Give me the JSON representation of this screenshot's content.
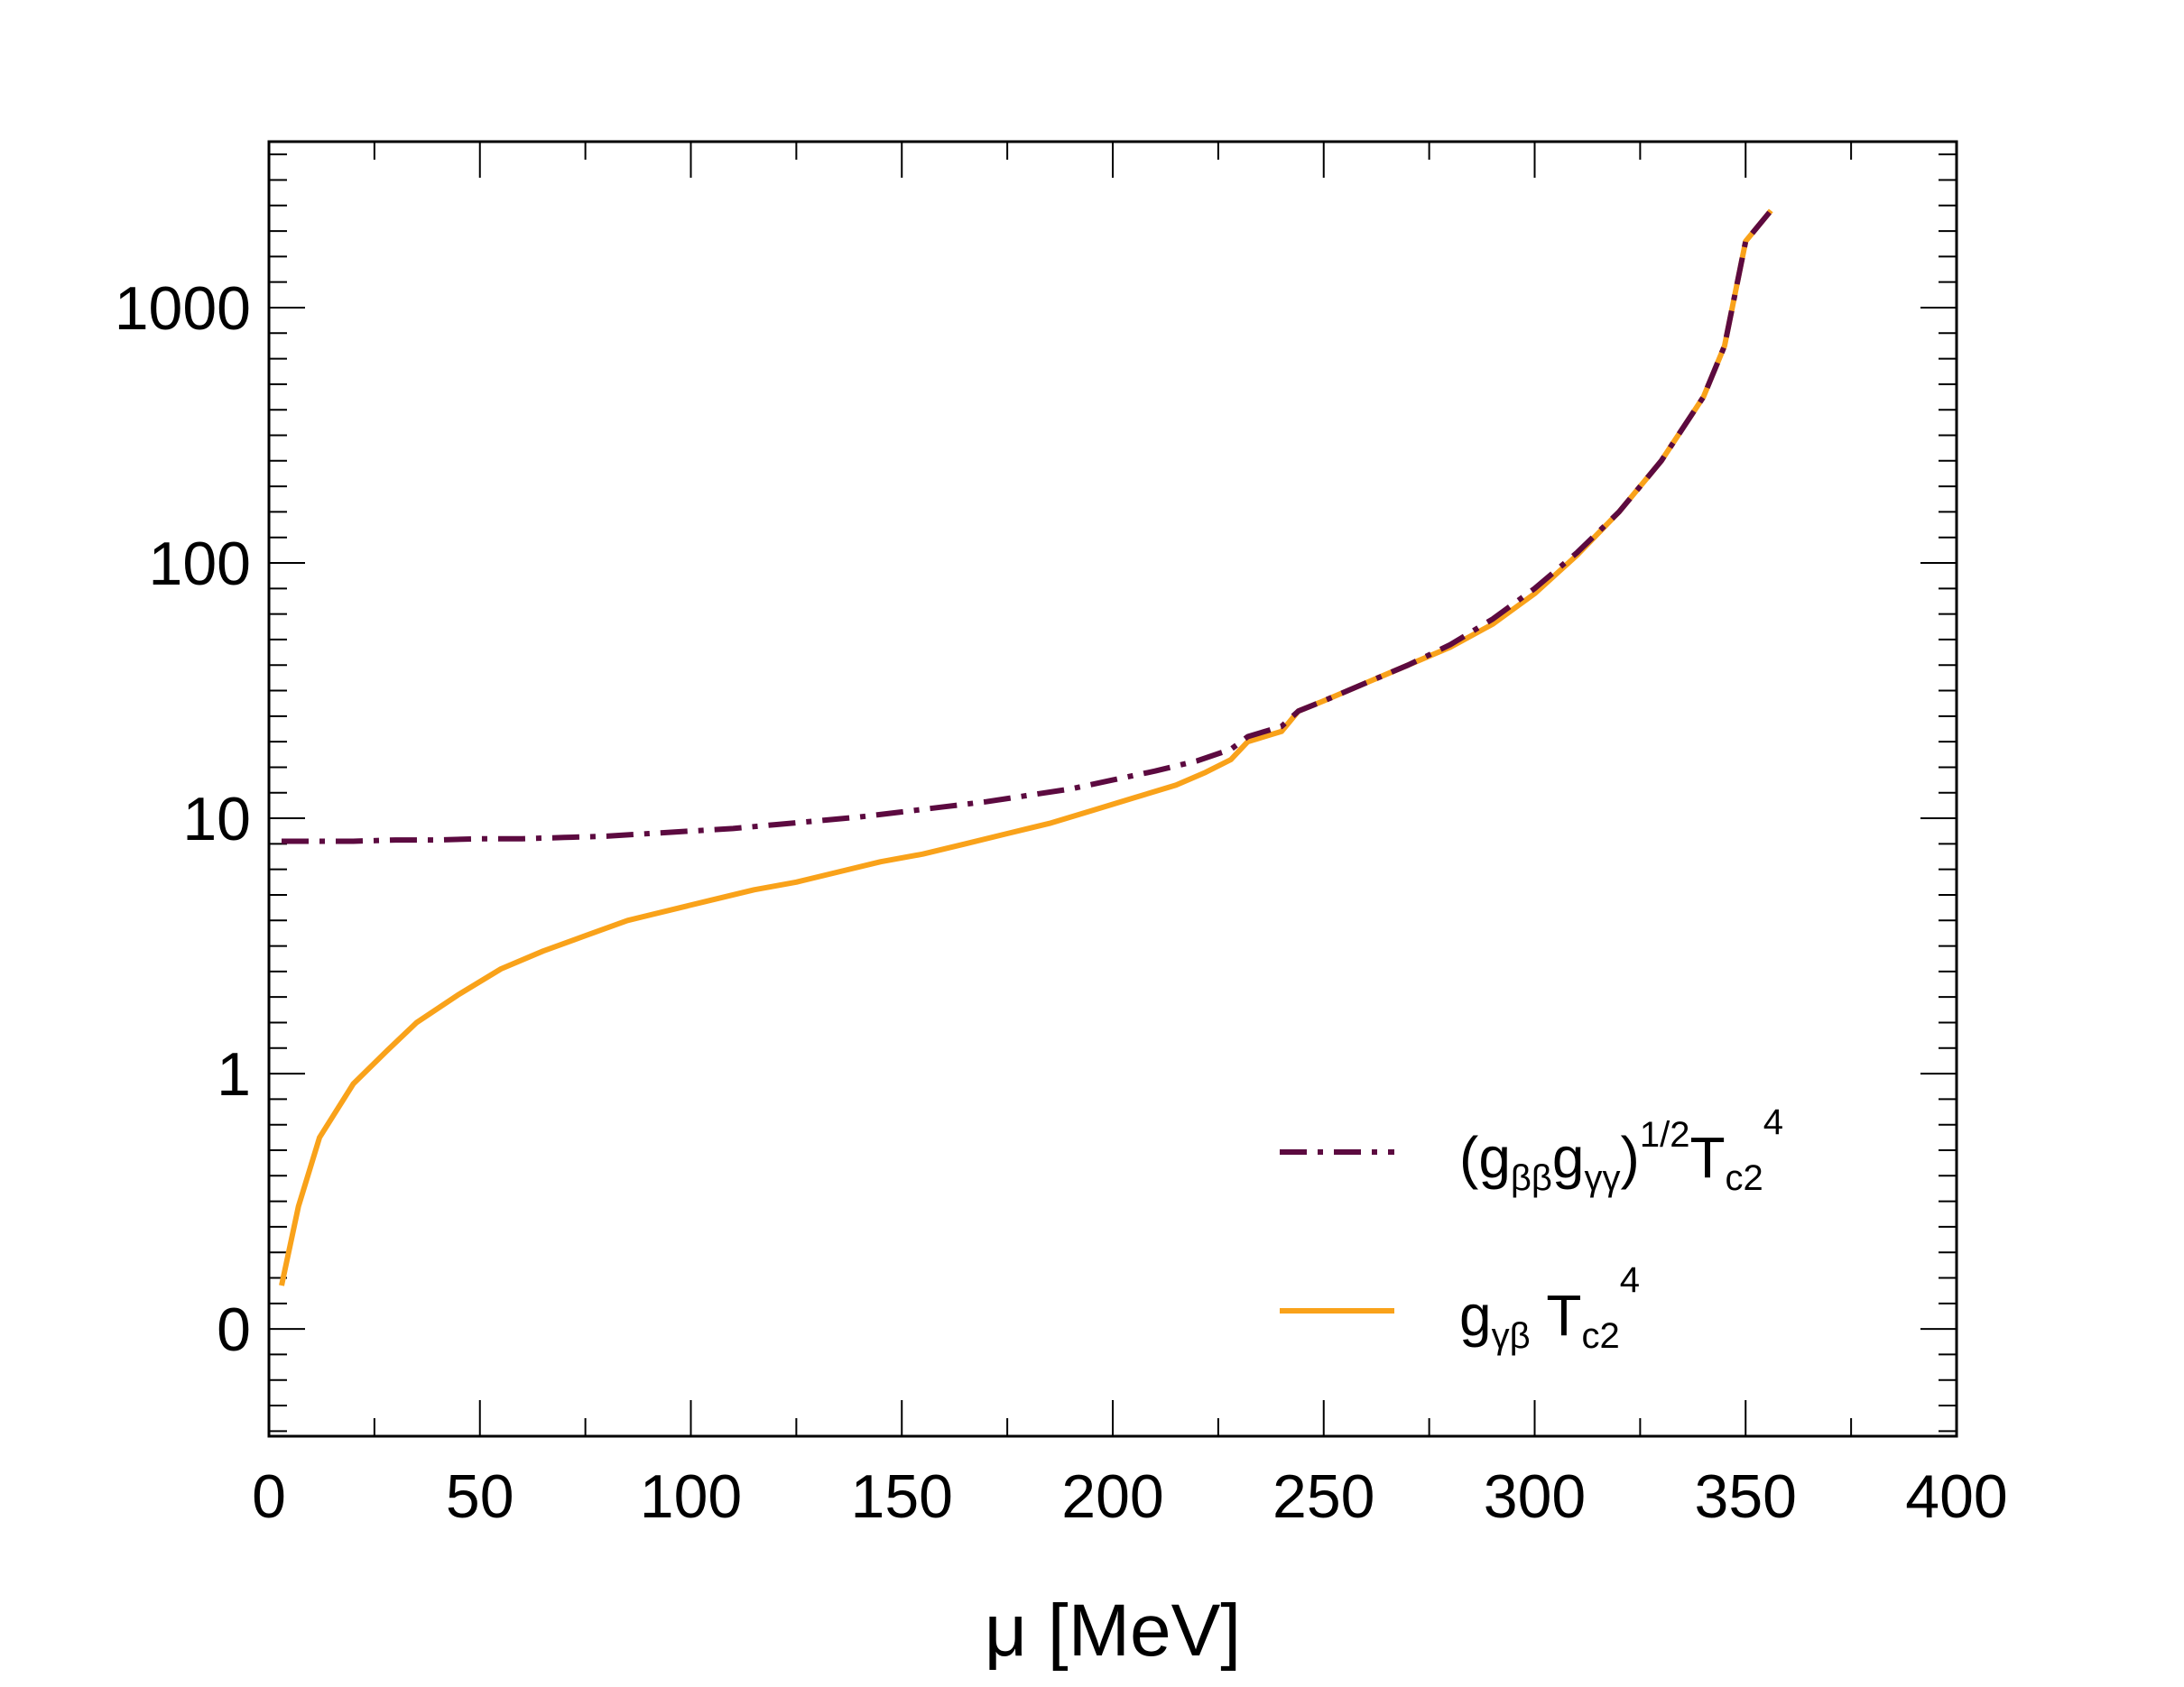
{
  "chart_data": {
    "type": "line",
    "title": "",
    "xlabel": "μ [MeV]",
    "ylabel": "",
    "xlim": [
      0,
      400
    ],
    "ylim": [
      -0.42,
      4.65
    ],
    "y_scale_note": "log-like axis; ticks shown at 0, 1, 10, 100, 1000",
    "x_ticks": [
      0,
      50,
      100,
      150,
      200,
      250,
      300,
      350,
      400
    ],
    "x_tick_labels": [
      "0",
      "50",
      "100",
      "150",
      "200",
      "250",
      "300",
      "350",
      "400"
    ],
    "y_ticks": [
      0,
      1,
      2,
      3,
      4
    ],
    "y_tick_labels": [
      "0",
      "1",
      "10",
      "100",
      "1000"
    ],
    "legend_position": "bottom-right",
    "series": [
      {
        "name": "(gββgγγ)^1/2 Tc2^4",
        "legend": {
          "base": "(g",
          "sub1": "ββ",
          "mid": "g",
          "sub2": "γγ",
          "close": ")",
          "sup1": "1/2",
          "t": "T",
          "sub3": "c2",
          "sup2": "4"
        },
        "color": "#5c0a40",
        "style": "dash-dot",
        "x": [
          3,
          10,
          20,
          30,
          40,
          50,
          60,
          70,
          80,
          90,
          100,
          110,
          120,
          130,
          140,
          150,
          160,
          170,
          180,
          190,
          200,
          210,
          220,
          228,
          232,
          240,
          244,
          250,
          260,
          270,
          280,
          290,
          300,
          310,
          320,
          330,
          340,
          345,
          350,
          356
        ],
        "y": [
          1.91,
          1.91,
          1.91,
          1.915,
          1.915,
          1.92,
          1.92,
          1.925,
          1.93,
          1.94,
          1.95,
          1.96,
          1.975,
          1.99,
          2.005,
          2.025,
          2.045,
          2.065,
          2.09,
          2.115,
          2.15,
          2.185,
          2.225,
          2.27,
          2.32,
          2.36,
          2.42,
          2.46,
          2.53,
          2.6,
          2.68,
          2.78,
          2.9,
          3.04,
          3.2,
          3.4,
          3.65,
          3.85,
          4.26,
          4.38
        ]
      },
      {
        "name": "gγβ Tc2^4",
        "legend": {
          "base": "g",
          "sub1": "γβ",
          "t": " T",
          "sub3": "c2",
          "sup2": "4"
        },
        "color": "#f9a21a",
        "style": "solid",
        "x": [
          3,
          7,
          12,
          20,
          28,
          35,
          45,
          55,
          65,
          75,
          85,
          95,
          105,
          115,
          125,
          135,
          145,
          155,
          165,
          175,
          185,
          195,
          205,
          215,
          222,
          228,
          232,
          240,
          244,
          250,
          260,
          270,
          280,
          290,
          300,
          310,
          320,
          330,
          340,
          345,
          350,
          356
        ],
        "y": [
          0.17,
          0.48,
          0.75,
          0.96,
          1.09,
          1.2,
          1.31,
          1.41,
          1.48,
          1.54,
          1.6,
          1.64,
          1.68,
          1.72,
          1.75,
          1.79,
          1.83,
          1.86,
          1.9,
          1.94,
          1.98,
          2.03,
          2.08,
          2.13,
          2.18,
          2.23,
          2.3,
          2.34,
          2.42,
          2.46,
          2.53,
          2.6,
          2.67,
          2.76,
          2.88,
          3.03,
          3.2,
          3.4,
          3.65,
          3.85,
          4.26,
          4.38
        ]
      }
    ]
  }
}
